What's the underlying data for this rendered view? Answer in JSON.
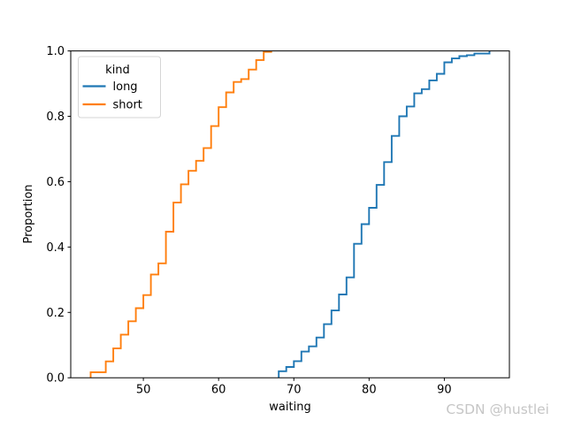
{
  "figure": {
    "watermark": "CSDN @hustlei"
  },
  "chart_data": {
    "type": "line",
    "variant": "ecdf_step",
    "title": "",
    "xlabel": "waiting",
    "ylabel": "Proportion",
    "xlim": [
      40.35,
      98.65
    ],
    "ylim": [
      0,
      1
    ],
    "grid": false,
    "xtick_values": [
      50,
      60,
      70,
      80,
      90
    ],
    "xtick_labels": [
      "50",
      "60",
      "70",
      "80",
      "90"
    ],
    "ytick_values": [
      0.0,
      0.2,
      0.4,
      0.6,
      0.8,
      1.0
    ],
    "ytick_labels": [
      "0.0",
      "0.2",
      "0.4",
      "0.6",
      "0.8",
      "1.0"
    ],
    "legend": {
      "title": "kind",
      "position": "upper-left",
      "entries": [
        {
          "label": "long",
          "color": "#1f77b4"
        },
        {
          "label": "short",
          "color": "#ff7f0e"
        }
      ]
    },
    "series": [
      {
        "name": "long",
        "color": "#1f77b4",
        "points": [
          [
            68,
            0.02
          ],
          [
            69,
            0.033
          ],
          [
            70,
            0.051
          ],
          [
            71,
            0.08
          ],
          [
            72,
            0.096
          ],
          [
            73,
            0.123
          ],
          [
            74,
            0.164
          ],
          [
            75,
            0.206
          ],
          [
            76,
            0.255
          ],
          [
            77,
            0.307
          ],
          [
            78,
            0.41
          ],
          [
            79,
            0.47
          ],
          [
            80,
            0.52
          ],
          [
            81,
            0.59
          ],
          [
            82,
            0.66
          ],
          [
            83,
            0.74
          ],
          [
            84,
            0.8
          ],
          [
            85,
            0.83
          ],
          [
            86,
            0.87
          ],
          [
            87,
            0.883
          ],
          [
            88,
            0.91
          ],
          [
            89,
            0.93
          ],
          [
            90,
            0.965
          ],
          [
            91,
            0.977
          ],
          [
            92,
            0.984
          ],
          [
            93,
            0.987
          ],
          [
            94,
            0.992
          ],
          [
            96,
            1.0
          ]
        ]
      },
      {
        "name": "short",
        "color": "#ff7f0e",
        "points": [
          [
            43,
            0.017
          ],
          [
            45,
            0.05
          ],
          [
            46,
            0.09
          ],
          [
            47,
            0.132
          ],
          [
            48,
            0.173
          ],
          [
            49,
            0.213
          ],
          [
            50,
            0.253
          ],
          [
            51,
            0.316
          ],
          [
            52,
            0.35
          ],
          [
            53,
            0.447
          ],
          [
            54,
            0.536
          ],
          [
            55,
            0.592
          ],
          [
            56,
            0.633
          ],
          [
            57,
            0.664
          ],
          [
            58,
            0.703
          ],
          [
            59,
            0.77
          ],
          [
            60,
            0.828
          ],
          [
            61,
            0.873
          ],
          [
            62,
            0.905
          ],
          [
            63,
            0.914
          ],
          [
            64,
            0.943
          ],
          [
            65,
            0.972
          ],
          [
            66,
            0.997
          ],
          [
            67,
            1.0
          ]
        ]
      }
    ]
  }
}
